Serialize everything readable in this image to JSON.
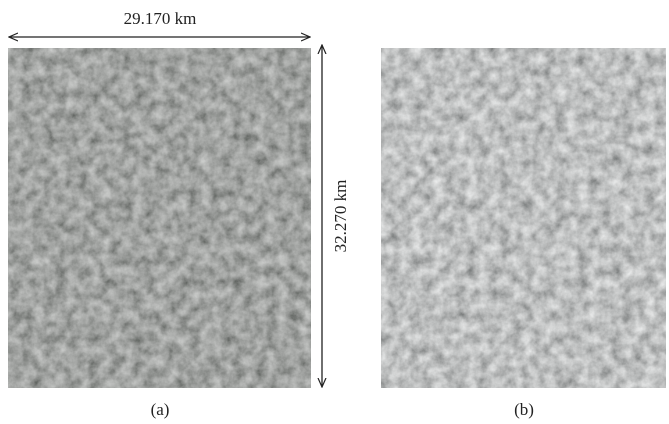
{
  "figure": {
    "width_label": "29.170 km",
    "height_label": "32.270 km",
    "panels": [
      {
        "label": "(a)"
      },
      {
        "label": "(b)"
      }
    ]
  }
}
